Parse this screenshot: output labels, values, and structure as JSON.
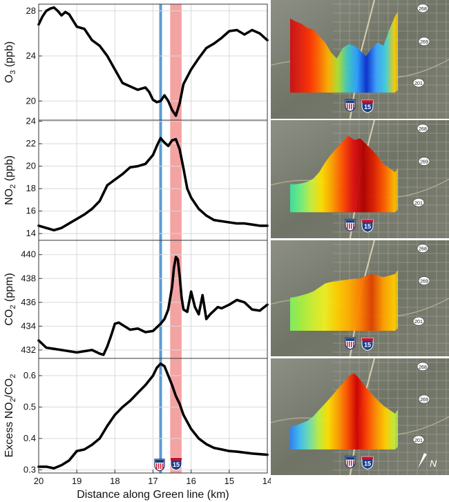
{
  "figure": {
    "xlabel": "Distance along Green line (km)",
    "colors": {
      "line": "#000000",
      "marker_line": "#5b9bd5",
      "highlight_band": "#f4a3a3",
      "frame": "#333333",
      "grid": "#d9d9d9"
    },
    "markers": {
      "vertical_line_x_km": 16.8,
      "band_x_km": [
        16.25,
        16.55
      ],
      "icons": [
        "us-highway-shield-icon",
        "interstate-15-shield-icon"
      ],
      "interstate_number": "15"
    }
  },
  "chart_data": [
    {
      "type": "line",
      "ylabel_main": "O",
      "ylabel_sub": "3",
      "ylabel_unit": " (ppb)",
      "xlim": [
        20,
        14
      ],
      "ylim": [
        18.3,
        28.6
      ],
      "xticks": [
        "20",
        "19",
        "18",
        "17",
        "16",
        "15",
        "14"
      ],
      "yticks": [
        20,
        24,
        28
      ],
      "series": [
        {
          "x": [
            20.0,
            19.9,
            19.8,
            19.7,
            19.6,
            19.5,
            19.4,
            19.3,
            19.2,
            19.0,
            18.8,
            18.6,
            18.4,
            18.2,
            18.0,
            17.8,
            17.6,
            17.4,
            17.2,
            17.1,
            17.0,
            16.9,
            16.8,
            16.7,
            16.6,
            16.5,
            16.4,
            16.3,
            16.2,
            16.0,
            15.8,
            15.6,
            15.4,
            15.2,
            15.0,
            14.8,
            14.6,
            14.4,
            14.2,
            14.0
          ],
          "y": [
            26.8,
            27.5,
            28.0,
            28.2,
            28.3,
            28.0,
            27.6,
            27.9,
            27.7,
            26.6,
            26.4,
            25.4,
            24.9,
            24.0,
            22.8,
            21.6,
            21.3,
            21.0,
            21.2,
            20.8,
            20.1,
            19.9,
            20.0,
            20.5,
            20.0,
            19.2,
            18.7,
            19.8,
            21.5,
            22.8,
            23.8,
            24.7,
            25.1,
            25.6,
            26.2,
            26.3,
            25.9,
            26.3,
            26.0,
            25.4
          ]
        }
      ]
    },
    {
      "type": "line",
      "ylabel_main": "NO",
      "ylabel_sub": "2",
      "ylabel_unit": " (ppb)",
      "xlim": [
        20,
        14
      ],
      "ylim": [
        13.4,
        24.1
      ],
      "xticks": [
        "20",
        "19",
        "18",
        "17",
        "16",
        "15",
        "14"
      ],
      "yticks": [
        14,
        16,
        18,
        20,
        22,
        24
      ],
      "series": [
        {
          "x": [
            20.0,
            19.8,
            19.6,
            19.4,
            19.2,
            19.0,
            18.8,
            18.6,
            18.4,
            18.3,
            18.2,
            18.0,
            17.8,
            17.6,
            17.4,
            17.2,
            17.0,
            16.9,
            16.8,
            16.7,
            16.6,
            16.5,
            16.4,
            16.3,
            16.2,
            16.1,
            16.0,
            15.8,
            15.6,
            15.4,
            15.2,
            15.0,
            14.8,
            14.6,
            14.4,
            14.2,
            14.0
          ],
          "y": [
            14.7,
            14.5,
            14.3,
            14.5,
            14.9,
            15.3,
            15.7,
            16.2,
            16.9,
            17.6,
            18.3,
            18.8,
            19.3,
            19.9,
            20.0,
            20.2,
            21.0,
            21.8,
            22.5,
            22.1,
            21.8,
            22.3,
            22.4,
            21.5,
            19.8,
            18.0,
            17.2,
            16.2,
            15.6,
            15.2,
            15.1,
            15.0,
            14.9,
            14.9,
            14.8,
            14.7,
            14.7
          ]
        }
      ]
    },
    {
      "type": "line",
      "ylabel_main": "CO",
      "ylabel_sub": "2",
      "ylabel_unit": " (ppm)",
      "xlim": [
        20,
        14
      ],
      "ylim": [
        431.3,
        441.2
      ],
      "xticks": [
        "20",
        "19",
        "18",
        "17",
        "16",
        "15",
        "14"
      ],
      "yticks": [
        432,
        434,
        436,
        438,
        440
      ],
      "series": [
        {
          "x": [
            20.0,
            19.8,
            19.6,
            19.4,
            19.2,
            19.0,
            18.8,
            18.6,
            18.4,
            18.3,
            18.2,
            18.1,
            18.0,
            17.9,
            17.8,
            17.6,
            17.4,
            17.2,
            17.0,
            16.9,
            16.8,
            16.7,
            16.6,
            16.5,
            16.45,
            16.4,
            16.35,
            16.3,
            16.25,
            16.2,
            16.1,
            16.0,
            15.9,
            15.8,
            15.7,
            15.6,
            15.5,
            15.4,
            15.3,
            15.2,
            15.0,
            14.8,
            14.6,
            14.4,
            14.2,
            14.0
          ],
          "y": [
            432.8,
            432.2,
            432.1,
            432.0,
            431.9,
            431.8,
            431.9,
            432.0,
            431.7,
            431.6,
            432.3,
            433.2,
            434.2,
            434.3,
            434.1,
            433.7,
            433.8,
            433.5,
            433.6,
            433.9,
            434.2,
            434.6,
            435.4,
            437.3,
            438.9,
            439.8,
            439.6,
            438.2,
            436.4,
            435.4,
            435.2,
            436.9,
            435.6,
            435.0,
            436.6,
            434.6,
            435.0,
            435.3,
            435.6,
            435.5,
            435.8,
            436.2,
            436.0,
            435.4,
            435.3,
            435.8
          ]
        }
      ]
    },
    {
      "type": "line",
      "ylabel_main": "Excess NO",
      "ylabel_sub": "2",
      "ylabel_mid": "/CO",
      "ylabel_sub2": "2",
      "ylabel_unit": "",
      "xlim": [
        20,
        14
      ],
      "ylim": [
        0.29,
        0.655
      ],
      "xticks": [
        "20",
        "19",
        "18",
        "17",
        "16",
        "15",
        "14"
      ],
      "yticks": [
        0.3,
        0.4,
        0.5,
        0.6
      ],
      "series": [
        {
          "x": [
            20.0,
            19.8,
            19.6,
            19.4,
            19.2,
            19.0,
            18.8,
            18.6,
            18.4,
            18.2,
            18.0,
            17.8,
            17.6,
            17.4,
            17.2,
            17.0,
            16.9,
            16.8,
            16.7,
            16.6,
            16.5,
            16.4,
            16.3,
            16.2,
            16.0,
            15.8,
            15.6,
            15.4,
            15.2,
            15.0,
            14.8,
            14.6,
            14.4,
            14.2,
            14.0
          ],
          "y": [
            0.31,
            0.31,
            0.305,
            0.315,
            0.33,
            0.36,
            0.365,
            0.38,
            0.4,
            0.44,
            0.475,
            0.5,
            0.52,
            0.545,
            0.57,
            0.6,
            0.625,
            0.638,
            0.63,
            0.6,
            0.57,
            0.535,
            0.51,
            0.475,
            0.43,
            0.4,
            0.382,
            0.37,
            0.365,
            0.36,
            0.358,
            0.355,
            0.352,
            0.35,
            0.348
          ]
        }
      ]
    }
  ],
  "maps": [
    {
      "labels": [
        "268",
        "269",
        "201"
      ],
      "profile": "o3",
      "icons": [
        "us-highway-shield-icon",
        "interstate-15-shield-icon"
      ],
      "interstate_number": "15"
    },
    {
      "labels": [
        "268",
        "269",
        "201"
      ],
      "profile": "no2",
      "icons": [
        "us-highway-shield-icon",
        "interstate-15-shield-icon"
      ],
      "interstate_number": "15"
    },
    {
      "labels": [
        "268",
        "269",
        "201"
      ],
      "profile": "co2",
      "icons": [
        "us-highway-shield-icon",
        "interstate-15-shield-icon"
      ],
      "interstate_number": "15"
    },
    {
      "labels": [
        "268",
        "269",
        "201"
      ],
      "profile": "ratio",
      "icons": [
        "us-highway-shield-icon",
        "interstate-15-shield-icon"
      ],
      "interstate_number": "15",
      "north_label": "N",
      "north_icon": "north-arrow-icon"
    }
  ]
}
